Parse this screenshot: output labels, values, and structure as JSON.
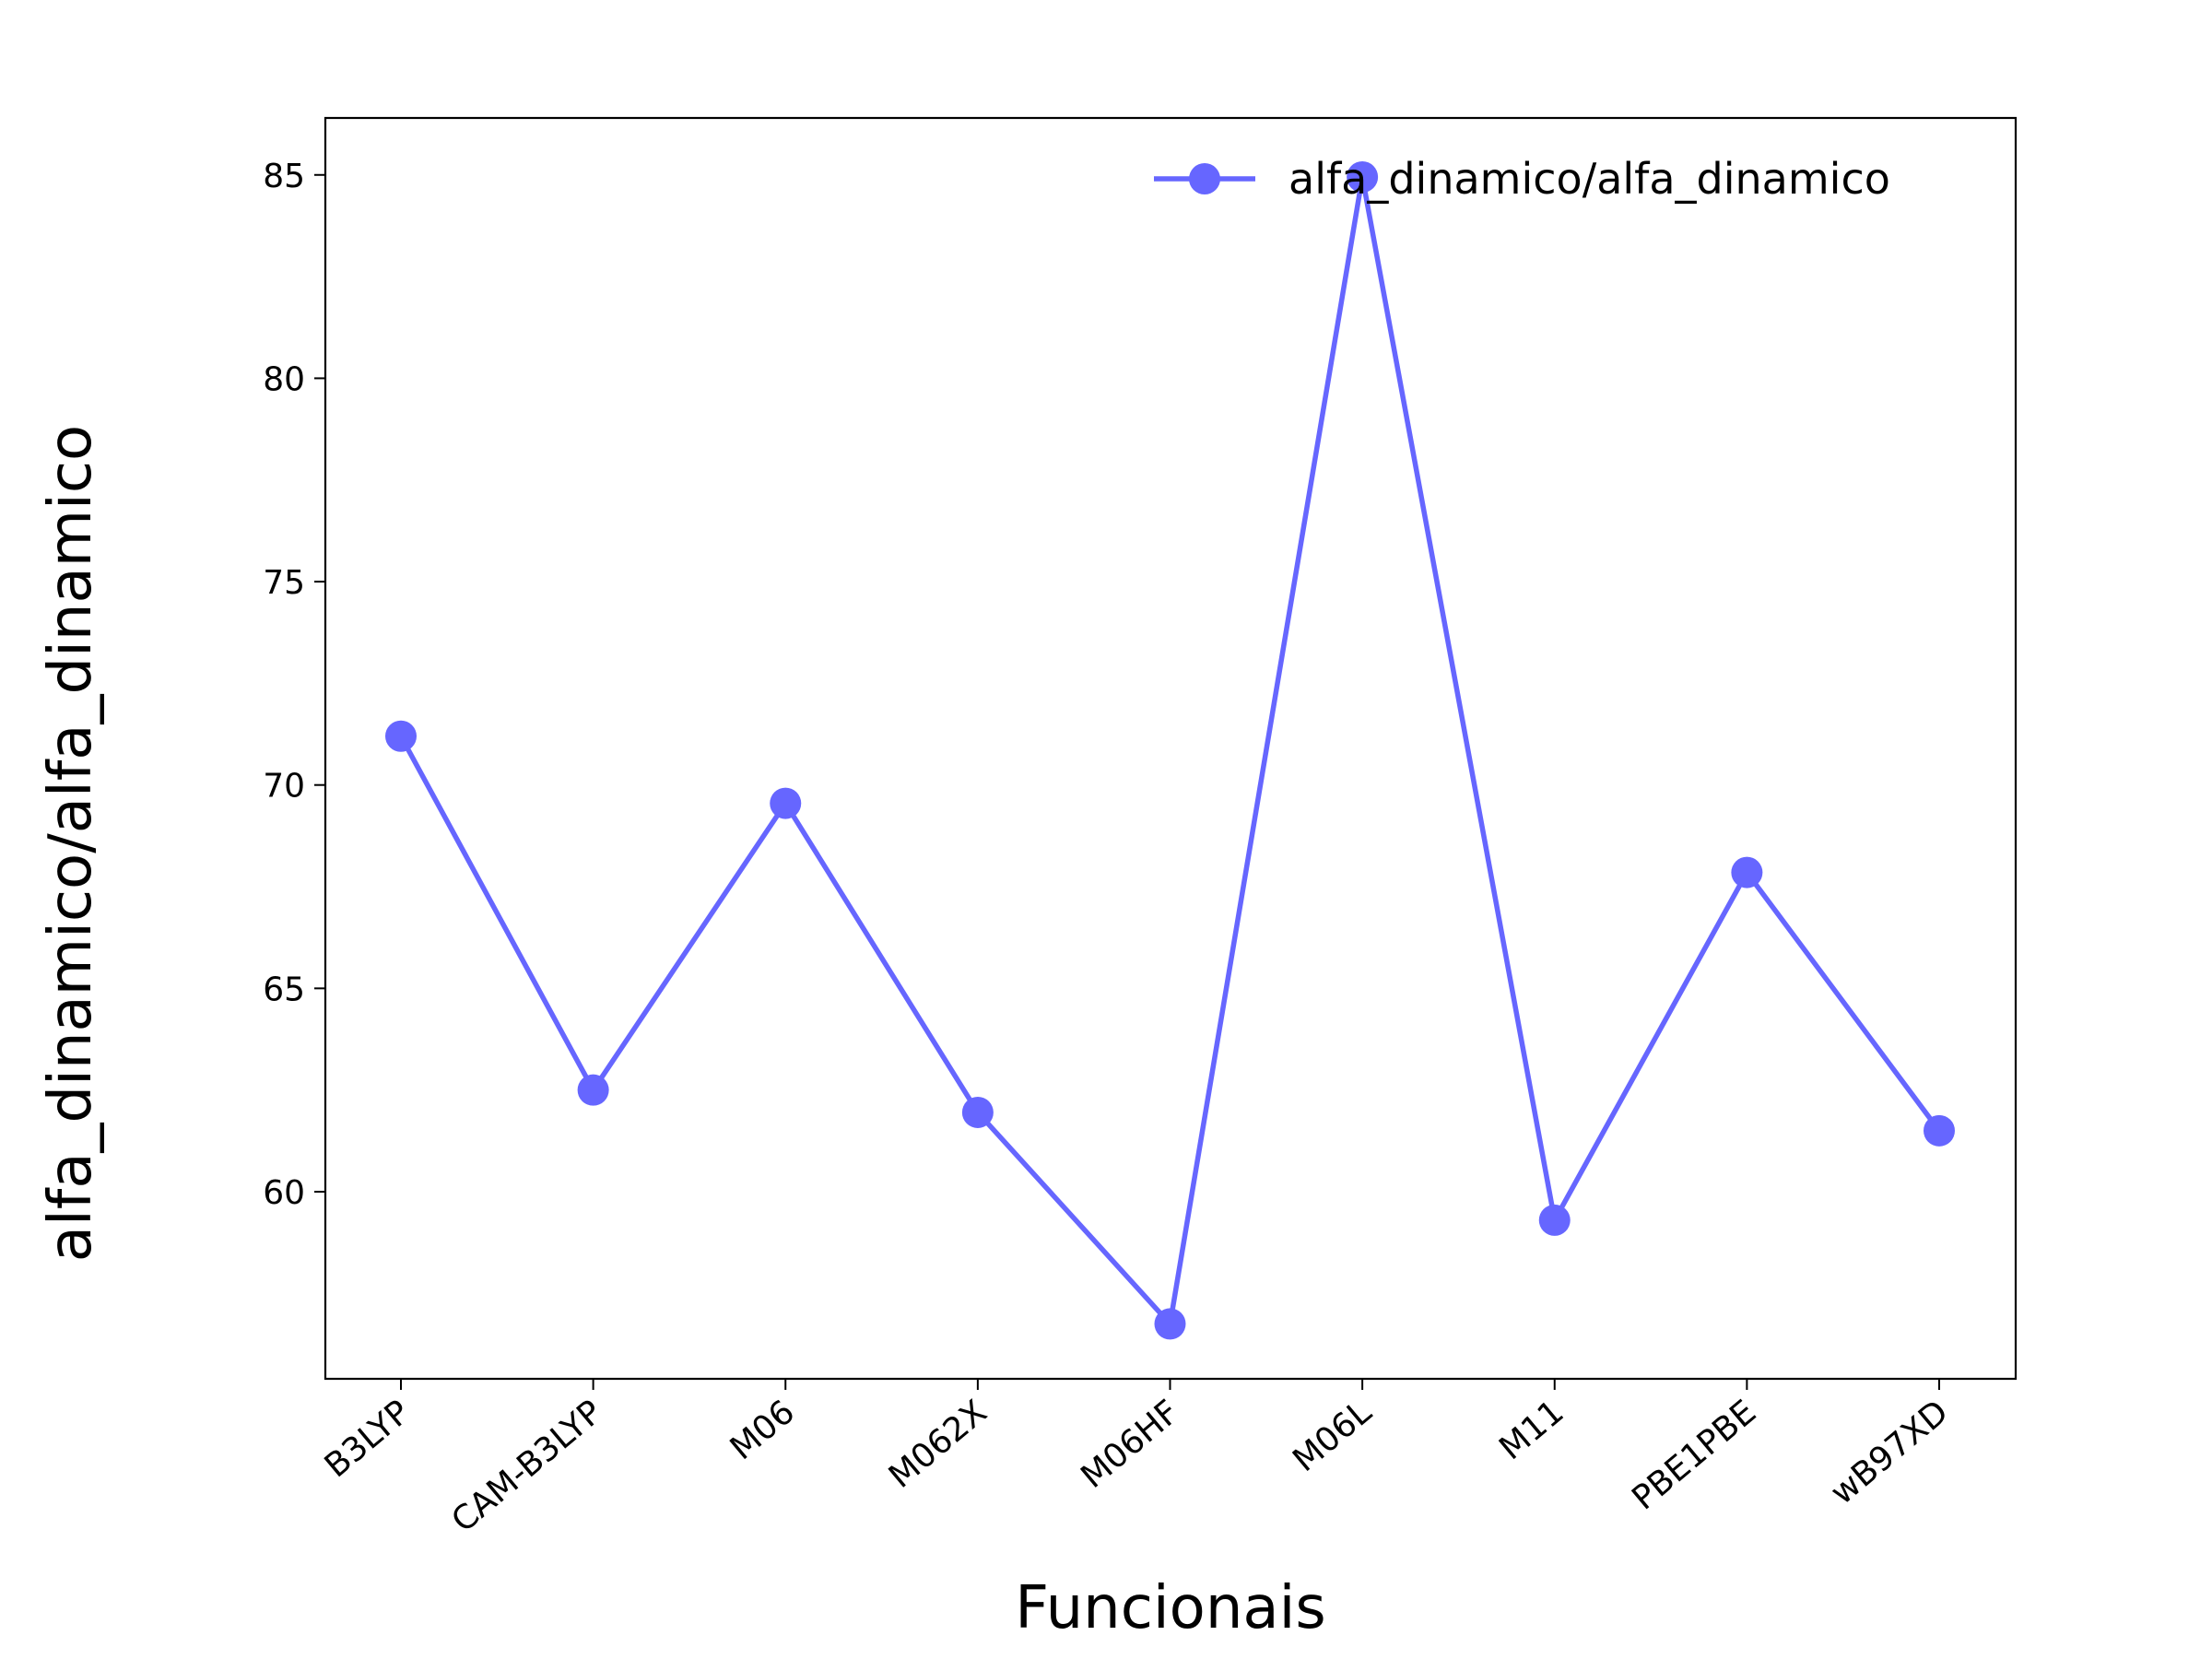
{
  "chart_data": {
    "type": "line",
    "categories": [
      "B3LYP",
      "CAM-B3LYP",
      "M06",
      "M062X",
      "M06HF",
      "M06L",
      "M11",
      "PBE1PBE",
      "wB97XD"
    ],
    "series": [
      {
        "name": "alfa_dinamico/alfa_dinamico",
        "values": [
          71.2,
          62.5,
          69.55,
          61.95,
          56.75,
          84.95,
          59.3,
          67.85,
          61.5
        ],
        "color": "#6666ff",
        "marker": "circle"
      }
    ],
    "xlabel": "Funcionais",
    "ylabel": "alfa_dinamico/alfa_dinamico",
    "yticks": [
      60,
      65,
      70,
      75,
      80,
      85
    ],
    "ylim": [
      55.4,
      86.4
    ],
    "xtick_rotation": -40,
    "grid": false,
    "legend": {
      "position": "top-right",
      "frame": false
    }
  }
}
